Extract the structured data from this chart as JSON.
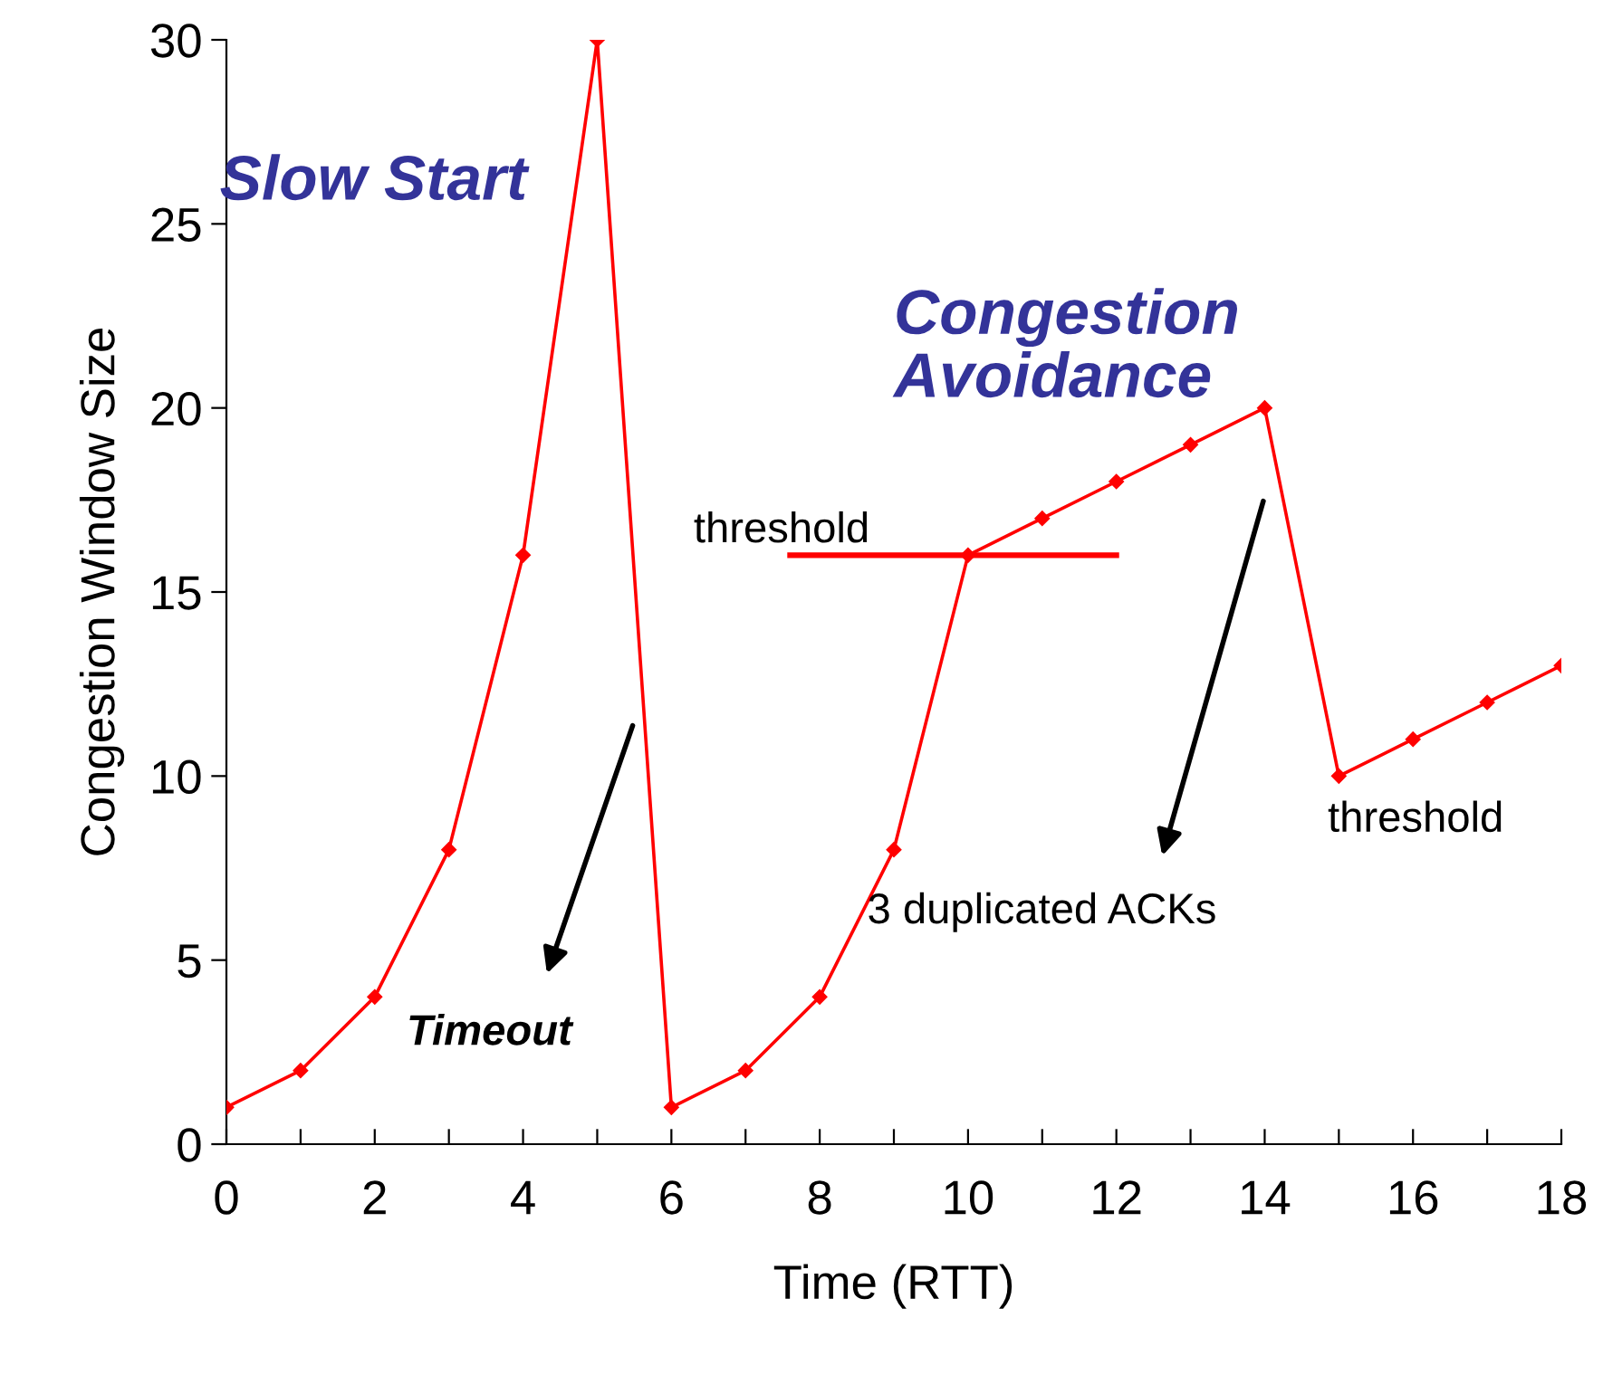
{
  "chart_data": {
    "type": "line",
    "xlabel": "Time (RTT)",
    "ylabel": "Congestion Window Size",
    "x": [
      0,
      1,
      2,
      3,
      4,
      5,
      6,
      7,
      8,
      9,
      10,
      11,
      12,
      13,
      14,
      15,
      16,
      17,
      18
    ],
    "series": [
      {
        "color": "#ff0000",
        "marker": "diamond",
        "values": [
          1,
          2,
          4,
          8,
          16,
          30,
          1,
          2,
          4,
          8,
          16,
          17,
          18,
          19,
          20,
          10,
          11,
          12,
          13
        ]
      },
      {
        "color": "#ff0000",
        "marker": "none",
        "x": [
          7.6,
          12
        ],
        "values": [
          16,
          16
        ]
      }
    ],
    "xlim": [
      0,
      18
    ],
    "ylim": [
      0,
      30
    ],
    "xticks": [
      0,
      {
        "value": 1,
        "label": null
      },
      2,
      {
        "value": 3,
        "label": null
      },
      4,
      {
        "value": 5,
        "label": null
      },
      6,
      {
        "value": 7,
        "label": null
      },
      8,
      {
        "value": 9,
        "label": null
      },
      10,
      {
        "value": 11,
        "label": null
      },
      12,
      {
        "value": 13,
        "label": null
      },
      14,
      {
        "value": 15,
        "label": null
      },
      16,
      {
        "value": 17,
        "label": null
      },
      18
    ],
    "yticks": [
      0,
      5,
      10,
      15,
      20,
      25,
      30
    ],
    "annotations": [
      "Slow Start",
      "Congestion\nAvoidance",
      "Timeout",
      "3 duplicated ACKs",
      "threshold",
      "threshold"
    ]
  }
}
